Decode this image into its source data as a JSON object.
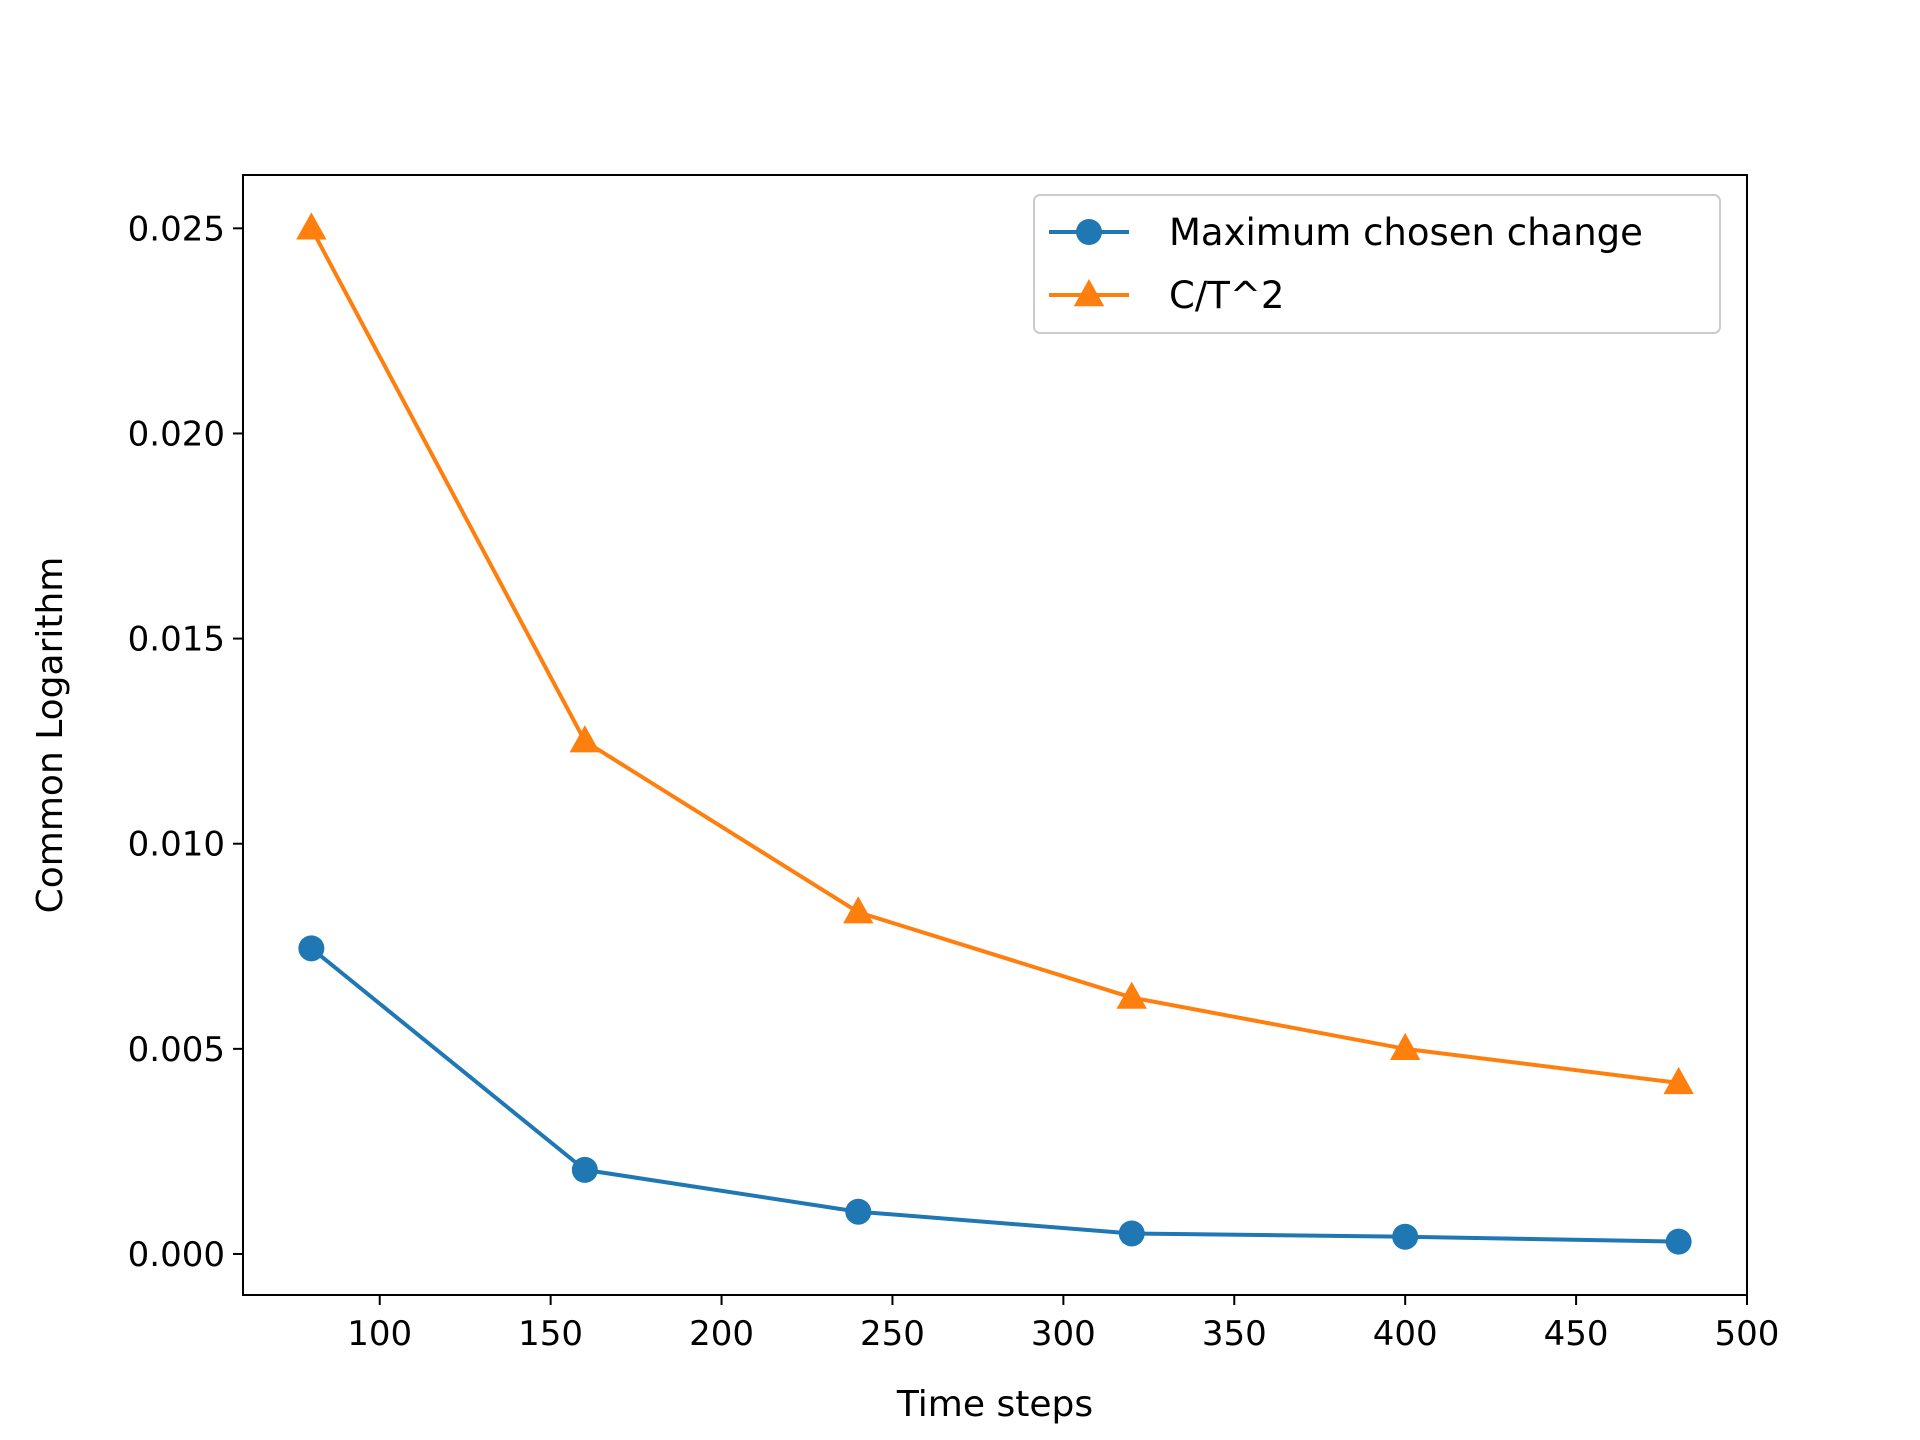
{
  "chart_data": {
    "type": "line",
    "title": "",
    "xlabel": "Time steps",
    "ylabel": "Common Logarithm",
    "xlim": [
      60,
      500
    ],
    "ylim": [
      -0.001,
      0.0263
    ],
    "xticks": [
      100,
      150,
      200,
      250,
      300,
      350,
      400,
      450,
      500
    ],
    "xtick_labels": [
      "100",
      "150",
      "200",
      "250",
      "300",
      "350",
      "400",
      "450",
      "500"
    ],
    "yticks": [
      0.0,
      0.005,
      0.01,
      0.015,
      0.02,
      0.025
    ],
    "ytick_labels": [
      "0.000",
      "0.005",
      "0.010",
      "0.015",
      "0.020",
      "0.025"
    ],
    "grid": false,
    "legend_position": "top-right",
    "x": [
      80,
      160,
      240,
      320,
      400,
      480
    ],
    "series": [
      {
        "name": "Maximum chosen change",
        "values": [
          0.00745,
          0.00205,
          0.00103,
          0.0005,
          0.00042,
          0.0003
        ],
        "color": "#1f77b4",
        "marker": "circle"
      },
      {
        "name": "C/T^2",
        "values": [
          0.025,
          0.0125,
          0.00833,
          0.00625,
          0.005,
          0.00417
        ],
        "color": "#ff7f0e",
        "marker": "triangle"
      }
    ]
  }
}
